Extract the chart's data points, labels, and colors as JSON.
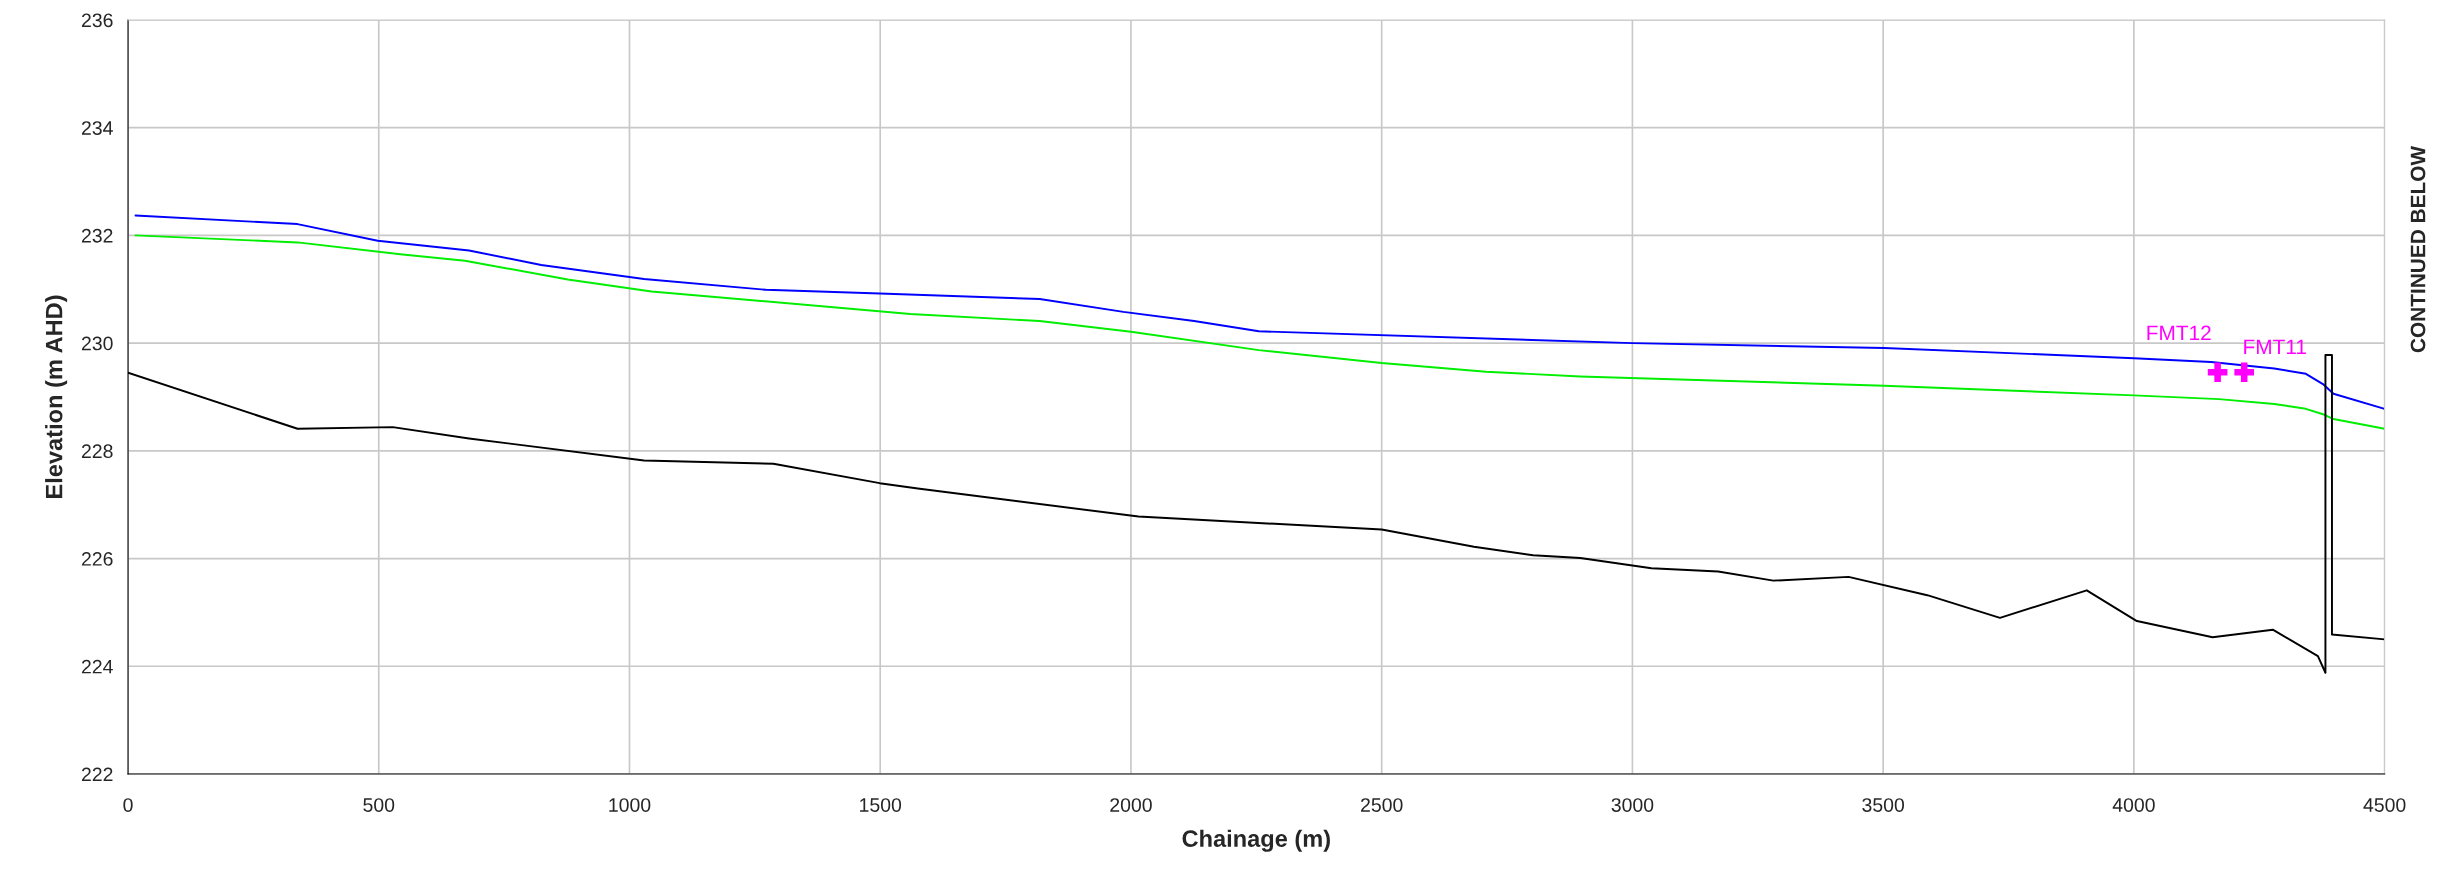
{
  "chart_data": {
    "type": "line",
    "xlabel": "Chainage (m)",
    "ylabel": "Elevation (m AHD)",
    "xlim": [
      0,
      4500
    ],
    "ylim": [
      222,
      236
    ],
    "xticks": [
      0,
      500,
      1000,
      1500,
      2000,
      2500,
      3000,
      3500,
      4000,
      4500
    ],
    "yticks": [
      222,
      224,
      226,
      228,
      230,
      232,
      234,
      236
    ],
    "grid": true,
    "marker": "none",
    "line_style": "solid",
    "series": [
      {
        "color": "#0000ff",
        "x": [
          15,
          338,
          498,
          680,
          824,
          1029,
          1272,
          1499,
          1818,
          1985,
          2126,
          2255,
          3000,
          3502,
          4000,
          4154,
          4280,
          4343,
          4377,
          4398,
          4500
        ],
        "values": [
          232.37,
          232.21,
          231.9,
          231.72,
          231.45,
          231.19,
          230.99,
          230.92,
          230.82,
          230.58,
          230.41,
          230.22,
          230.0,
          229.91,
          229.72,
          229.65,
          229.53,
          229.43,
          229.24,
          229.06,
          228.78
        ]
      },
      {
        "color": "#00ee00",
        "x": [
          15,
          338,
          543,
          672,
          877,
          1044,
          1560,
          1818,
          2000,
          2255,
          2500,
          2708,
          2896,
          3502,
          4000,
          4170,
          4280,
          4343,
          4377,
          4398,
          4500
        ],
        "values": [
          232.0,
          231.87,
          231.65,
          231.53,
          231.18,
          230.96,
          230.54,
          230.41,
          230.21,
          229.87,
          229.63,
          229.47,
          229.38,
          229.21,
          229.03,
          228.96,
          228.87,
          228.78,
          228.68,
          228.59,
          228.41
        ]
      },
      {
        "color": "#000000",
        "x": [
          0,
          338,
          528,
          680,
          1029,
          1287,
          1499,
          1575,
          2015,
          2500,
          2684,
          2802,
          2896,
          3038,
          3171,
          3281,
          3431,
          3588,
          3733,
          3906,
          4006,
          4157,
          4277,
          4367,
          4382,
          4382,
          4395,
          4395,
          4500
        ],
        "values": [
          229.45,
          228.41,
          228.44,
          228.23,
          227.82,
          227.76,
          227.4,
          227.3,
          226.78,
          226.54,
          226.22,
          226.06,
          226.01,
          225.82,
          225.76,
          225.59,
          225.66,
          225.32,
          224.9,
          225.41,
          224.84,
          224.54,
          224.68,
          224.19,
          223.88,
          229.78,
          229.78,
          224.59,
          224.5
        ]
      },
      {
        "type": "scatter",
        "marker": "cross",
        "color": "#ff00ff",
        "x": [
          4167,
          4220
        ],
        "values": [
          229.46,
          229.46
        ]
      }
    ],
    "annotations": [
      {
        "text": "FMT12",
        "x": 4167,
        "y": 229.46
      },
      {
        "text": "FMT11",
        "x": 4220,
        "y": 229.46
      },
      "CONTINUED BELOW"
    ]
  }
}
